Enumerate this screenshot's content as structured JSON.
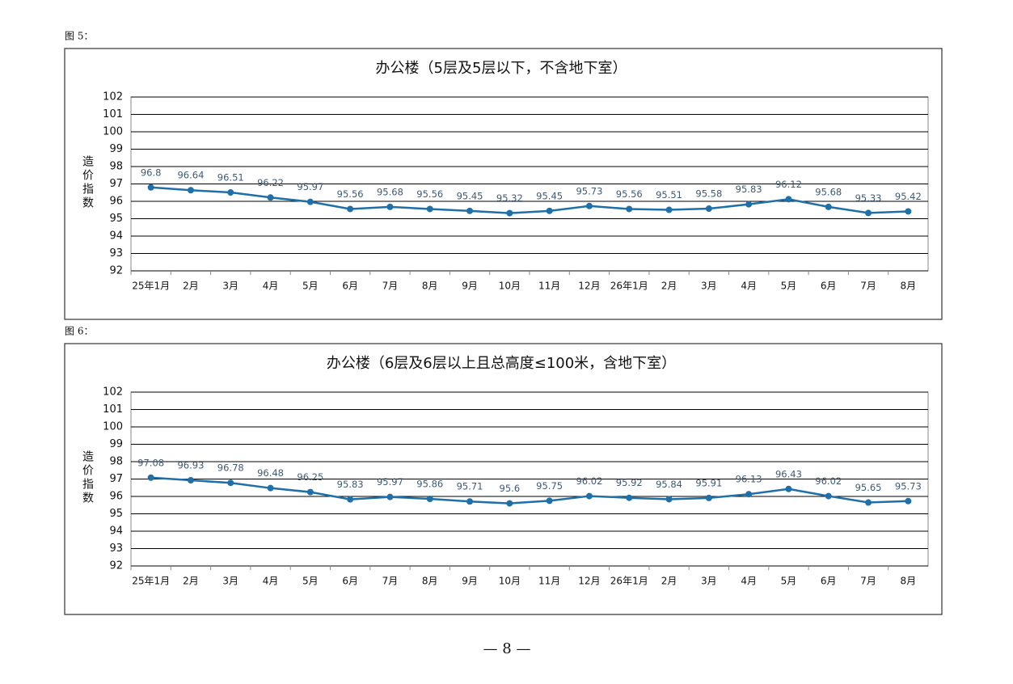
{
  "chart_data": [
    {
      "type": "line",
      "caption": "图 5：",
      "title": "办公楼（5层及5层以下，不含地下室）",
      "y_label": "造价指数",
      "categories": [
        "25年1月",
        "2月",
        "3月",
        "4月",
        "5月",
        "6月",
        "7月",
        "8月",
        "9月",
        "10月",
        "11月",
        "12月",
        "26年1月",
        "2月",
        "3月",
        "4月",
        "5月",
        "6月",
        "7月",
        "8月"
      ],
      "values": [
        96.8,
        96.64,
        96.51,
        96.22,
        95.97,
        95.56,
        95.68,
        95.56,
        95.45,
        95.32,
        95.45,
        95.73,
        95.56,
        95.51,
        95.58,
        95.83,
        96.12,
        95.68,
        95.33,
        95.42
      ],
      "color": "#1f6fa8",
      "ylim": [
        92,
        102
      ],
      "yticks": [
        92,
        93,
        94,
        95,
        96,
        97,
        98,
        99,
        100,
        101,
        102
      ],
      "grid": true
    },
    {
      "type": "line",
      "caption": "图 6：",
      "title": "办公楼（6层及6层以上且总高度≤100米，含地下室）",
      "y_label": "造价指数",
      "categories": [
        "25年1月",
        "2月",
        "3月",
        "4月",
        "5月",
        "6月",
        "7月",
        "8月",
        "9月",
        "10月",
        "11月",
        "12月",
        "26年1月",
        "2月",
        "3月",
        "4月",
        "5月",
        "6月",
        "7月",
        "8月"
      ],
      "values": [
        97.08,
        96.93,
        96.78,
        96.48,
        96.25,
        95.83,
        95.97,
        95.86,
        95.71,
        95.6,
        95.75,
        96.02,
        95.92,
        95.84,
        95.91,
        96.13,
        96.43,
        96.02,
        95.65,
        95.73
      ],
      "color": "#1f6fa8",
      "ylim": [
        92,
        102
      ],
      "yticks": [
        92,
        93,
        94,
        95,
        96,
        97,
        98,
        99,
        100,
        101,
        102
      ],
      "grid": true
    }
  ],
  "footer": "— 8 —"
}
